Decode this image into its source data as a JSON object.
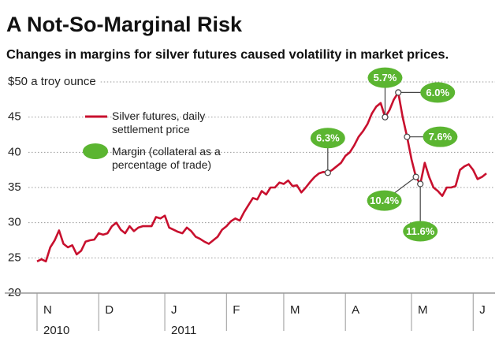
{
  "chart_data": {
    "type": "line",
    "title": "A Not-So-Marginal Risk",
    "subtitle": "Changes in margins for silver futures caused volatility in market prices.",
    "categories": [
      "N",
      null,
      null,
      null,
      null,
      null,
      null,
      null,
      null,
      null,
      null,
      null,
      null,
      null,
      "D",
      null,
      null,
      null,
      null,
      null,
      null,
      null,
      null,
      null,
      null,
      null,
      null,
      null,
      null,
      "J",
      null,
      null,
      null,
      null,
      null,
      null,
      null,
      null,
      null,
      null,
      null,
      null,
      null,
      "F",
      null,
      null,
      null,
      null,
      null,
      null,
      null,
      null,
      null,
      null,
      null,
      null,
      "M",
      null,
      null,
      null,
      null,
      null,
      null,
      null,
      null,
      null,
      null,
      null,
      null,
      null,
      "A",
      null,
      null,
      null,
      null,
      null,
      null,
      null,
      null,
      null,
      null,
      null,
      null,
      null,
      null,
      "M",
      null,
      null,
      null,
      null,
      null,
      null,
      null,
      null,
      null,
      null,
      null,
      null,
      null,
      "J",
      null,
      null,
      null
    ],
    "years": [
      "2010",
      "2011"
    ],
    "series": [
      {
        "name": "Silver futures, daily settlement price",
        "color": "#c8102e",
        "values": [
          24.5,
          24.8,
          24.5,
          26.5,
          27.5,
          28.9,
          27,
          26.5,
          26.8,
          25.5,
          26,
          27.3,
          27.5,
          27.6,
          28.5,
          28.3,
          28.5,
          29.5,
          30,
          29,
          28.5,
          29.5,
          28.8,
          29.3,
          29.5,
          29.5,
          29.5,
          30.8,
          30.6,
          31,
          29.3,
          29,
          28.7,
          28.5,
          29.3,
          28.8,
          28,
          27.7,
          27.3,
          27,
          27.5,
          28,
          29,
          29.5,
          30.2,
          30.6,
          30.3,
          31.5,
          32.5,
          33.5,
          33.3,
          34.5,
          34,
          35,
          35,
          35.7,
          35.5,
          36,
          35.2,
          35.3,
          34.3,
          35,
          35.8,
          36.5,
          37,
          37.2,
          37.1,
          37.5,
          38,
          38.5,
          39.5,
          40,
          41,
          42.2,
          43,
          44,
          45.5,
          46.5,
          47,
          45,
          46,
          47.5,
          48.5,
          45,
          42.2,
          39,
          36.5,
          35.5,
          38.5,
          36.5,
          35,
          34.5,
          33.8,
          35,
          35,
          35.2,
          37.5,
          38,
          38.3,
          37.5,
          36.2,
          36.5,
          37
        ]
      },
      {
        "name": "Margin (collateral as a percentage of trade)",
        "color": "#5bb531",
        "values": [
          null,
          null,
          null,
          null,
          null,
          null,
          null,
          null,
          null,
          null,
          null,
          null,
          null,
          null,
          null,
          null,
          null,
          null,
          null,
          null,
          null,
          null,
          null,
          null,
          null,
          null,
          null,
          null,
          null,
          null,
          null,
          null,
          null,
          null,
          null,
          null,
          null,
          null,
          null,
          null,
          null,
          null,
          null,
          null,
          null,
          null,
          null,
          null,
          null,
          null,
          null,
          null,
          null,
          null,
          null,
          null,
          null,
          null,
          null,
          null,
          null,
          null,
          null,
          null,
          null,
          null,
          6.3,
          null,
          null,
          null,
          null,
          null,
          null,
          null,
          null,
          null,
          null,
          null,
          null,
          5.7,
          null,
          null,
          6.0,
          null,
          7.6,
          null,
          10.4,
          11.6,
          null,
          null,
          null,
          null,
          null,
          null,
          null,
          null,
          null,
          null,
          null,
          null,
          null,
          null,
          null
        ],
        "value_labels": [
          null,
          null,
          null,
          null,
          null,
          null,
          null,
          null,
          null,
          null,
          null,
          null,
          null,
          null,
          null,
          null,
          null,
          null,
          null,
          null,
          null,
          null,
          null,
          null,
          null,
          null,
          null,
          null,
          null,
          null,
          null,
          null,
          null,
          null,
          null,
          null,
          null,
          null,
          null,
          null,
          null,
          null,
          null,
          null,
          null,
          null,
          null,
          null,
          null,
          null,
          null,
          null,
          null,
          null,
          null,
          null,
          null,
          null,
          null,
          null,
          null,
          null,
          null,
          null,
          null,
          null,
          "6.3%",
          null,
          null,
          null,
          null,
          null,
          null,
          null,
          null,
          null,
          null,
          null,
          null,
          "5.7%",
          null,
          null,
          "6.0%",
          null,
          "7.6%",
          null,
          "10.4%",
          "11.6%",
          null,
          null,
          null,
          null,
          null,
          null,
          null,
          null,
          null,
          null,
          null,
          null,
          null,
          null,
          null
        ]
      }
    ],
    "ylim": [
      20,
      50
    ],
    "yticks": [
      20,
      25,
      30,
      35,
      40,
      45,
      {
        "value": 50,
        "label": "$50 a troy ounce"
      }
    ],
    "grid": true
  }
}
